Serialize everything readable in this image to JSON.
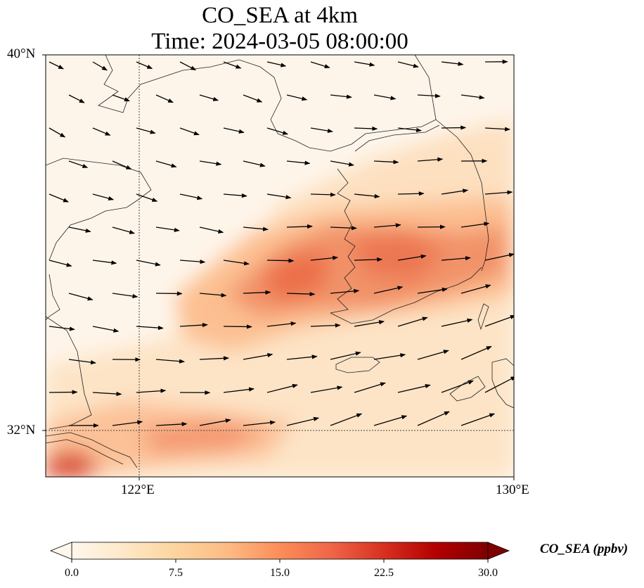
{
  "title": {
    "line1": "CO_SEA at 4km",
    "line2": "Time: 2024-03-05 08:00:00"
  },
  "map": {
    "lon_range": [
      119.5,
      130
    ],
    "lat_range": [
      30.0,
      40
    ],
    "gridlines": {
      "lon": [
        122
      ],
      "lat": [
        32
      ],
      "style": "dotted"
    },
    "lat_tick_labels": [
      "40°N",
      "32°N"
    ],
    "lon_tick_labels": [
      "122°E",
      "130°E"
    ],
    "field_colors": {
      "background": "#fef5ea",
      "low": "#fde4c6",
      "medium": "#fcbf91",
      "high": "#f2855e",
      "very_high": "#e7623e"
    },
    "coastline_color": "#222222",
    "vector_color": "#000000"
  },
  "colorbar": {
    "label": "CO_SEA (ppbv)",
    "ticks": [
      "0.0",
      "7.5",
      "15.0",
      "22.5",
      "30.0"
    ],
    "range": [
      0,
      30
    ],
    "colormap": "OrRd",
    "extend": "both",
    "stops": [
      "#fff7ec",
      "#fee8c8",
      "#fdd49e",
      "#fdbb84",
      "#fc8d59",
      "#ef6548",
      "#d7301f",
      "#b30000",
      "#7f0000"
    ]
  }
}
